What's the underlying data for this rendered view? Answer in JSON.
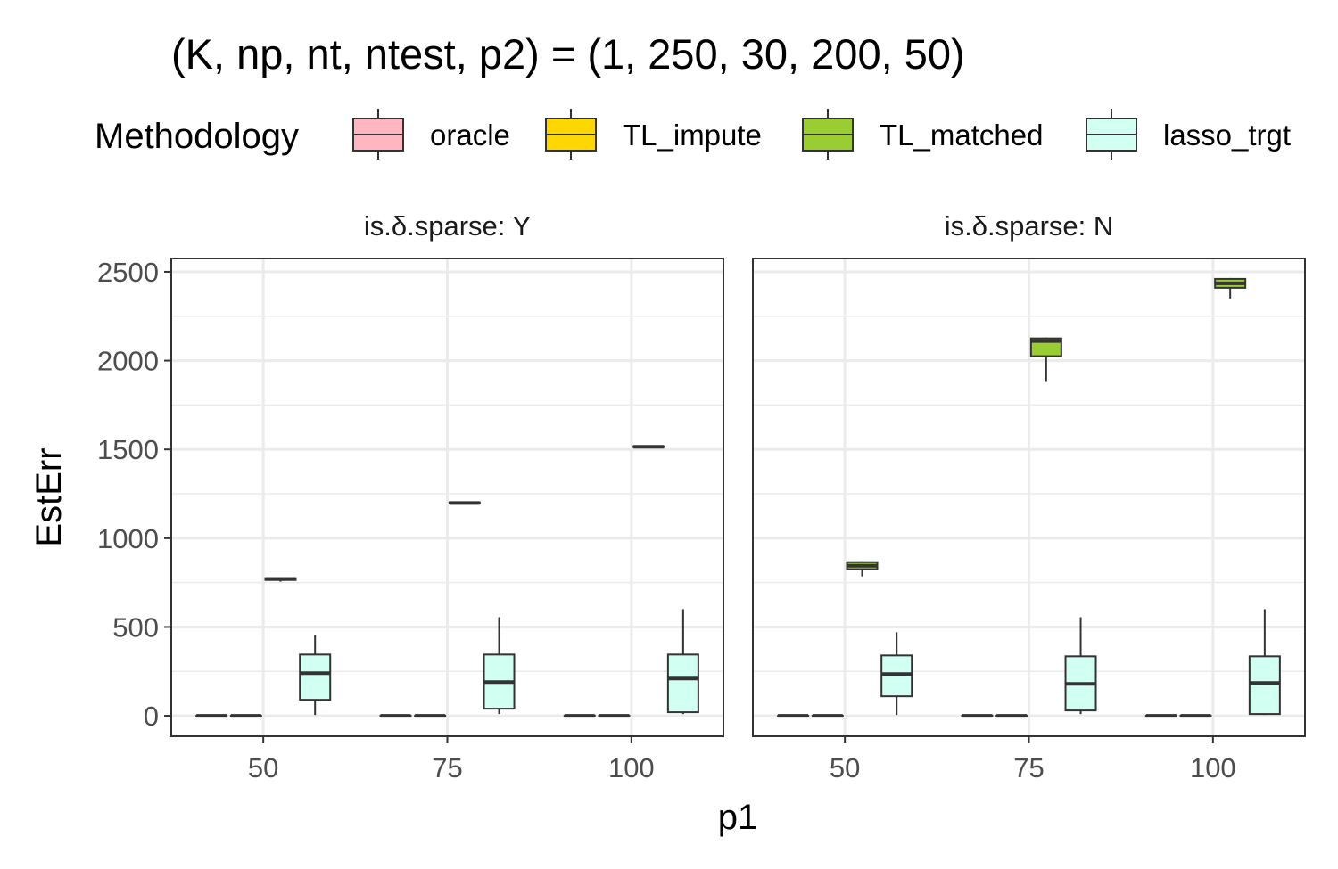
{
  "chart_data": {
    "type": "boxplot",
    "title": "(K, np, nt, ntest, p2) = (1, 250, 30, 200, 50)",
    "xlabel": "p1",
    "ylabel": "EstErr",
    "ylim": [
      -115,
      2575
    ],
    "yticks": [
      0,
      500,
      1000,
      1500,
      2000,
      2500
    ],
    "categories": [
      "50",
      "75",
      "100"
    ],
    "legend": {
      "title": "Methodology",
      "position": "top",
      "items": [
        {
          "name": "oracle",
          "color": "#FFB6C1"
        },
        {
          "name": "TL_impute",
          "color": "#FFD700"
        },
        {
          "name": "TL_matched",
          "color": "#9ACD32"
        },
        {
          "name": "lasso_trgt",
          "color": "#D1FFF1"
        }
      ]
    },
    "panels": [
      {
        "strip": "is.δ.sparse: Y",
        "series": [
          {
            "name": "oracle",
            "boxes": [
              {
                "min": 0,
                "q1": 0,
                "median": 0,
                "q3": 0,
                "max": 0
              },
              {
                "min": 0,
                "q1": 0,
                "median": 0,
                "q3": 0,
                "max": 0
              },
              {
                "min": 0,
                "q1": 0,
                "median": 0,
                "q3": 0,
                "max": 0
              }
            ]
          },
          {
            "name": "TL_impute",
            "boxes": [
              {
                "min": 0,
                "q1": 0,
                "median": 0,
                "q3": 0,
                "max": 0
              },
              {
                "min": 0,
                "q1": 0,
                "median": 0,
                "q3": 0,
                "max": 0
              },
              {
                "min": 0,
                "q1": 0,
                "median": 0,
                "q3": 0,
                "max": 0
              }
            ]
          },
          {
            "name": "TL_matched",
            "boxes": [
              {
                "min": 755,
                "q1": 765,
                "median": 770,
                "q3": 775,
                "max": 778
              },
              {
                "min": 1192,
                "q1": 1195,
                "median": 1198,
                "q3": 1202,
                "max": 1205
              },
              {
                "min": 1512,
                "q1": 1513,
                "median": 1515,
                "q3": 1517,
                "max": 1518
              }
            ]
          },
          {
            "name": "lasso_trgt",
            "boxes": [
              {
                "min": 5,
                "q1": 90,
                "median": 240,
                "q3": 345,
                "max": 455
              },
              {
                "min": 10,
                "q1": 40,
                "median": 190,
                "q3": 345,
                "max": 555
              },
              {
                "min": 10,
                "q1": 20,
                "median": 210,
                "q3": 345,
                "max": 600
              }
            ]
          }
        ]
      },
      {
        "strip": "is.δ.sparse: N",
        "series": [
          {
            "name": "oracle",
            "boxes": [
              {
                "min": 0,
                "q1": 0,
                "median": 0,
                "q3": 0,
                "max": 0
              },
              {
                "min": 0,
                "q1": 0,
                "median": 0,
                "q3": 0,
                "max": 0
              },
              {
                "min": 0,
                "q1": 0,
                "median": 0,
                "q3": 0,
                "max": 0
              }
            ]
          },
          {
            "name": "TL_impute",
            "boxes": [
              {
                "min": 0,
                "q1": 0,
                "median": 0,
                "q3": 0,
                "max": 0
              },
              {
                "min": 0,
                "q1": 0,
                "median": 0,
                "q3": 0,
                "max": 0
              },
              {
                "min": 0,
                "q1": 0,
                "median": 0,
                "q3": 0,
                "max": 0
              }
            ]
          },
          {
            "name": "TL_matched",
            "boxes": [
              {
                "min": 785,
                "q1": 825,
                "median": 845,
                "q3": 865,
                "max": 870
              },
              {
                "min": 1880,
                "q1": 2025,
                "median": 2110,
                "q3": 2125,
                "max": 2130
              },
              {
                "min": 2350,
                "q1": 2410,
                "median": 2435,
                "q3": 2460,
                "max": 2465
              }
            ]
          },
          {
            "name": "lasso_trgt",
            "boxes": [
              {
                "min": 5,
                "q1": 110,
                "median": 235,
                "q3": 340,
                "max": 470
              },
              {
                "min": 10,
                "q1": 30,
                "median": 180,
                "q3": 335,
                "max": 555
              },
              {
                "min": 5,
                "q1": 10,
                "median": 185,
                "q3": 335,
                "max": 600
              }
            ]
          }
        ]
      }
    ]
  }
}
